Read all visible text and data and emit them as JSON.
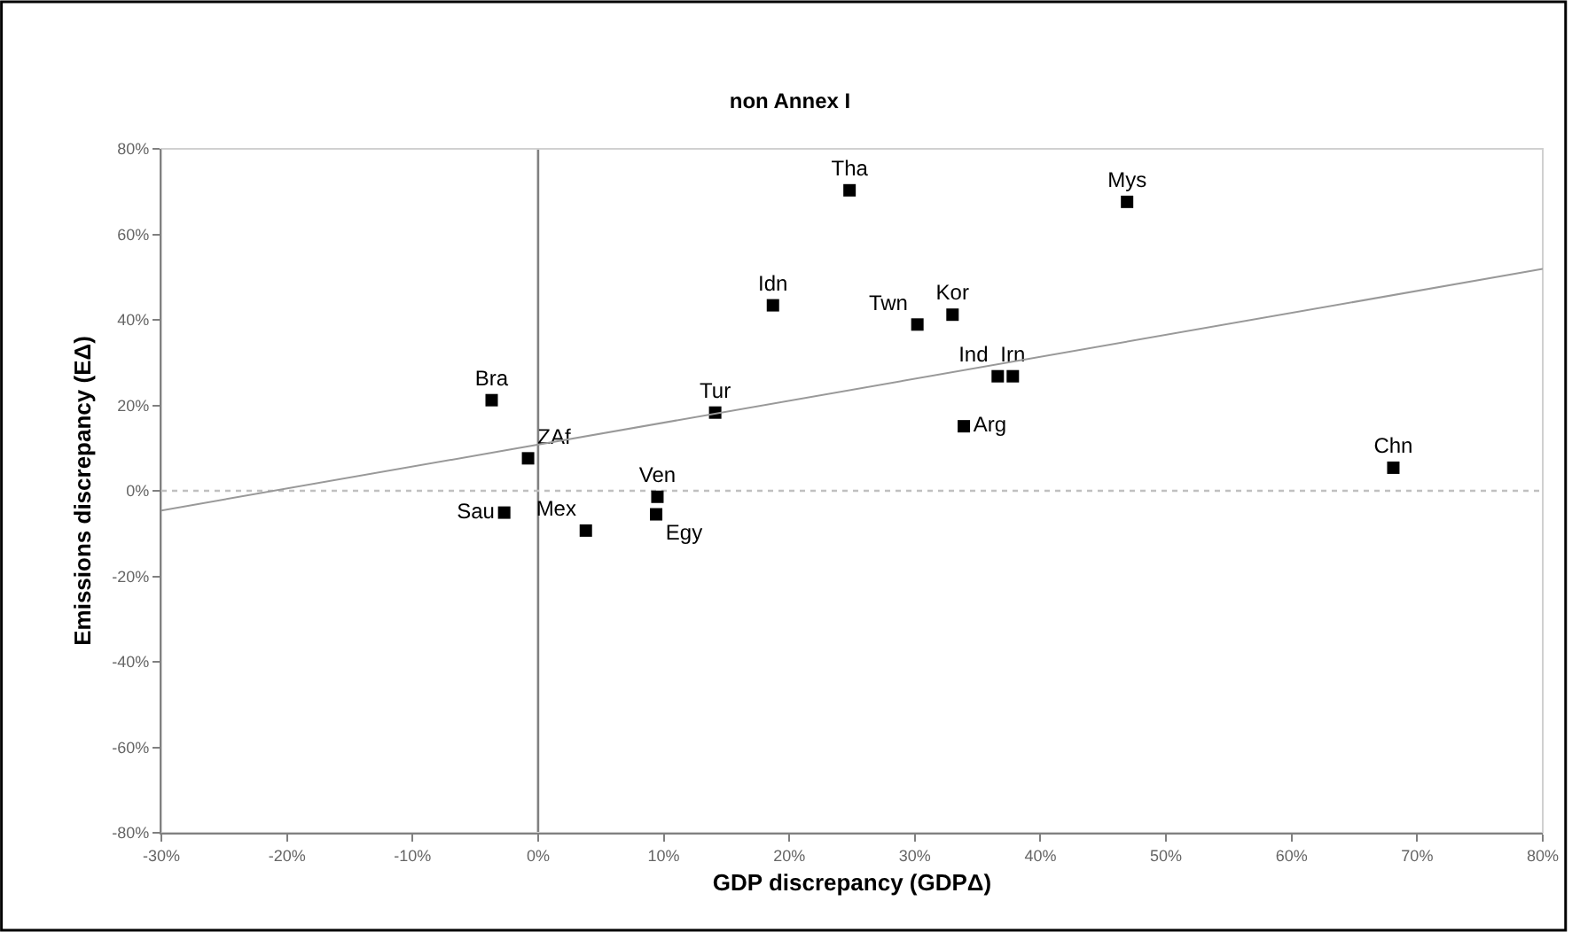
{
  "chart_data": {
    "type": "scatter",
    "title": "non Annex I",
    "xlabel": "GDP discrepancy (GDPΔ)",
    "ylabel": "Emissions discrepancy (EΔ)",
    "xlim": [
      -30,
      80
    ],
    "xticks": [
      {
        "value": -30,
        "label": "-30%"
      },
      {
        "value": -20,
        "label": "-20%"
      },
      {
        "value": -10,
        "label": "-10%"
      },
      {
        "value": 0,
        "label": "0%"
      },
      {
        "value": 10,
        "label": "10%"
      },
      {
        "value": 20,
        "label": "20%"
      },
      {
        "value": 30,
        "label": "30%"
      },
      {
        "value": 40,
        "label": "40%"
      },
      {
        "value": 50,
        "label": "50%"
      },
      {
        "value": 60,
        "label": "60%"
      },
      {
        "value": 70,
        "label": "70%"
      },
      {
        "value": 80,
        "label": "80%"
      }
    ],
    "ylim": [
      -80,
      80
    ],
    "yticks": [
      {
        "value": -80,
        "label": "-80%"
      },
      {
        "value": -60,
        "label": "-60%"
      },
      {
        "value": -40,
        "label": "-40%"
      },
      {
        "value": -20,
        "label": "-20%"
      },
      {
        "value": 0,
        "label": "0%"
      },
      {
        "value": 20,
        "label": "20%"
      },
      {
        "value": 40,
        "label": "40%"
      },
      {
        "value": 60,
        "label": "60%"
      },
      {
        "value": 80,
        "label": "80%"
      }
    ],
    "grid": false,
    "legend": false,
    "marker": "square",
    "ref_lines": [
      {
        "axis": "x",
        "value": 0,
        "label": null,
        "color": "#808080",
        "line_style": "solid"
      },
      {
        "axis": "y",
        "value": 0,
        "label": null,
        "color": "#c0c0c0",
        "line_style": "dotted"
      }
    ],
    "series": [
      {
        "name": "Bra",
        "color": "#000000",
        "x": [
          -3.7
        ],
        "values": [
          21.2
        ]
      },
      {
        "name": "ZAf",
        "color": "#000000",
        "x": [
          -0.8
        ],
        "values": [
          7.6
        ]
      },
      {
        "name": "Sau",
        "color": "#000000",
        "x": [
          -2.7
        ],
        "values": [
          -5.1
        ]
      },
      {
        "name": "Mex",
        "color": "#000000",
        "x": [
          3.8
        ],
        "values": [
          -9.3
        ]
      },
      {
        "name": "Ven",
        "color": "#000000",
        "x": [
          9.5
        ],
        "values": [
          -1.4
        ]
      },
      {
        "name": "Egy",
        "color": "#000000",
        "x": [
          9.4
        ],
        "values": [
          -5.5
        ]
      },
      {
        "name": "Tur",
        "color": "#000000",
        "x": [
          14.1
        ],
        "values": [
          18.3
        ]
      },
      {
        "name": "Idn",
        "color": "#000000",
        "x": [
          18.7
        ],
        "values": [
          43.4
        ]
      },
      {
        "name": "Tha",
        "color": "#000000",
        "x": [
          24.8
        ],
        "values": [
          70.3
        ]
      },
      {
        "name": "Mys",
        "color": "#000000",
        "x": [
          46.9
        ],
        "values": [
          67.6
        ]
      },
      {
        "name": "Twn",
        "color": "#000000",
        "x": [
          30.2
        ],
        "values": [
          38.9
        ]
      },
      {
        "name": "Kor",
        "color": "#000000",
        "x": [
          33.0
        ],
        "values": [
          41.2
        ]
      },
      {
        "name": "Ind",
        "color": "#000000",
        "x": [
          36.6
        ],
        "values": [
          26.8
        ]
      },
      {
        "name": "Irn",
        "color": "#000000",
        "x": [
          37.8
        ],
        "values": [
          26.8
        ]
      },
      {
        "name": "Arg",
        "color": "#000000",
        "x": [
          33.9
        ],
        "values": [
          15.1
        ]
      },
      {
        "name": "Chn",
        "color": "#000000",
        "x": [
          68.1
        ],
        "values": [
          5.4
        ]
      },
      {
        "type": "line",
        "color": "#999999",
        "x": [
          -30,
          80
        ],
        "values": [
          -4.6,
          51.9
        ],
        "marker": "none"
      }
    ]
  }
}
